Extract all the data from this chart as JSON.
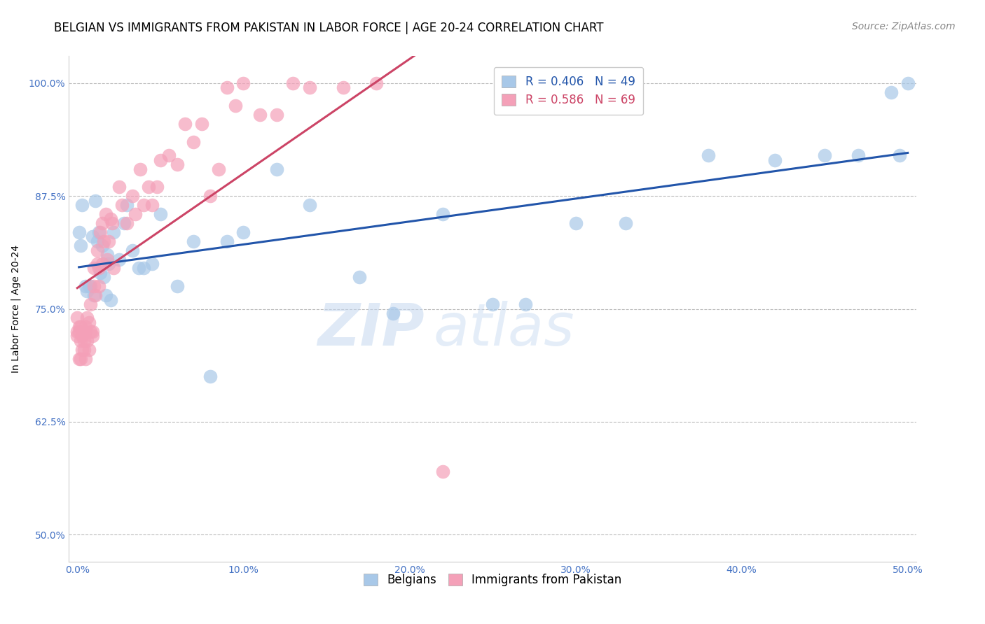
{
  "title": "BELGIAN VS IMMIGRANTS FROM PAKISTAN IN LABOR FORCE | AGE 20-24 CORRELATION CHART",
  "source": "Source: ZipAtlas.com",
  "ylabel": "In Labor Force | Age 20-24",
  "watermark_zip": "ZIP",
  "watermark_atlas": "atlas",
  "r_belgians": 0.406,
  "n_belgians": 49,
  "r_pakistan": 0.586,
  "n_pakistan": 69,
  "xlim": [
    -0.005,
    0.505
  ],
  "ylim": [
    0.47,
    1.03
  ],
  "xticks": [
    0.0,
    0.1,
    0.2,
    0.3,
    0.4,
    0.5
  ],
  "yticks": [
    0.5,
    0.625,
    0.75,
    0.875,
    1.0
  ],
  "xticklabels": [
    "0.0%",
    "10.0%",
    "20.0%",
    "30.0%",
    "40.0%",
    "50.0%"
  ],
  "yticklabels": [
    "50.0%",
    "62.5%",
    "75.0%",
    "87.5%",
    "100.0%"
  ],
  "belgian_color": "#a8c8e8",
  "pakistan_color": "#f4a0b8",
  "trendline_blue": "#2255aa",
  "trendline_pink": "#cc4466",
  "background": "#ffffff",
  "grid_color": "#bbbbbb",
  "legend_label_blue": "Belgians",
  "legend_label_pink": "Immigrants from Pakistan",
  "belgians_x": [
    0.001,
    0.002,
    0.003,
    0.005,
    0.006,
    0.007,
    0.008,
    0.009,
    0.01,
    0.011,
    0.012,
    0.013,
    0.014,
    0.015,
    0.016,
    0.017,
    0.018,
    0.019,
    0.02,
    0.022,
    0.025,
    0.028,
    0.03,
    0.033,
    0.037,
    0.04,
    0.045,
    0.05,
    0.06,
    0.07,
    0.08,
    0.09,
    0.1,
    0.12,
    0.14,
    0.17,
    0.19,
    0.22,
    0.25,
    0.27,
    0.3,
    0.33,
    0.38,
    0.42,
    0.45,
    0.47,
    0.49,
    0.495,
    0.5
  ],
  "belgians_y": [
    0.835,
    0.82,
    0.865,
    0.775,
    0.77,
    0.775,
    0.775,
    0.83,
    0.765,
    0.87,
    0.825,
    0.835,
    0.79,
    0.82,
    0.785,
    0.765,
    0.81,
    0.8,
    0.76,
    0.835,
    0.805,
    0.845,
    0.865,
    0.815,
    0.795,
    0.795,
    0.8,
    0.855,
    0.775,
    0.825,
    0.675,
    0.825,
    0.835,
    0.905,
    0.865,
    0.785,
    0.745,
    0.855,
    0.755,
    0.755,
    0.845,
    0.845,
    0.92,
    0.915,
    0.92,
    0.92,
    0.99,
    0.92,
    1.0
  ],
  "pakistan_x": [
    0.0,
    0.0,
    0.0,
    0.001,
    0.001,
    0.001,
    0.002,
    0.002,
    0.002,
    0.003,
    0.003,
    0.004,
    0.004,
    0.005,
    0.005,
    0.005,
    0.006,
    0.006,
    0.007,
    0.007,
    0.008,
    0.008,
    0.009,
    0.009,
    0.01,
    0.01,
    0.011,
    0.012,
    0.012,
    0.013,
    0.013,
    0.014,
    0.015,
    0.015,
    0.016,
    0.017,
    0.018,
    0.019,
    0.02,
    0.021,
    0.022,
    0.025,
    0.027,
    0.03,
    0.033,
    0.035,
    0.038,
    0.04,
    0.043,
    0.045,
    0.048,
    0.05,
    0.055,
    0.06,
    0.065,
    0.07,
    0.075,
    0.08,
    0.085,
    0.09,
    0.095,
    0.1,
    0.11,
    0.12,
    0.13,
    0.14,
    0.16,
    0.18,
    0.22
  ],
  "pakistan_y": [
    0.725,
    0.74,
    0.72,
    0.73,
    0.695,
    0.725,
    0.715,
    0.695,
    0.73,
    0.705,
    0.72,
    0.715,
    0.705,
    0.725,
    0.695,
    0.73,
    0.715,
    0.74,
    0.735,
    0.705,
    0.755,
    0.725,
    0.725,
    0.72,
    0.775,
    0.795,
    0.765,
    0.8,
    0.815,
    0.775,
    0.795,
    0.835,
    0.845,
    0.8,
    0.825,
    0.855,
    0.805,
    0.825,
    0.85,
    0.845,
    0.795,
    0.885,
    0.865,
    0.845,
    0.875,
    0.855,
    0.905,
    0.865,
    0.885,
    0.865,
    0.885,
    0.915,
    0.92,
    0.91,
    0.955,
    0.935,
    0.955,
    0.875,
    0.905,
    0.995,
    0.975,
    1.0,
    0.965,
    0.965,
    1.0,
    0.995,
    0.995,
    1.0,
    0.57
  ],
  "title_fontsize": 12,
  "axis_label_fontsize": 10,
  "tick_fontsize": 10,
  "legend_fontsize": 12,
  "source_fontsize": 10
}
